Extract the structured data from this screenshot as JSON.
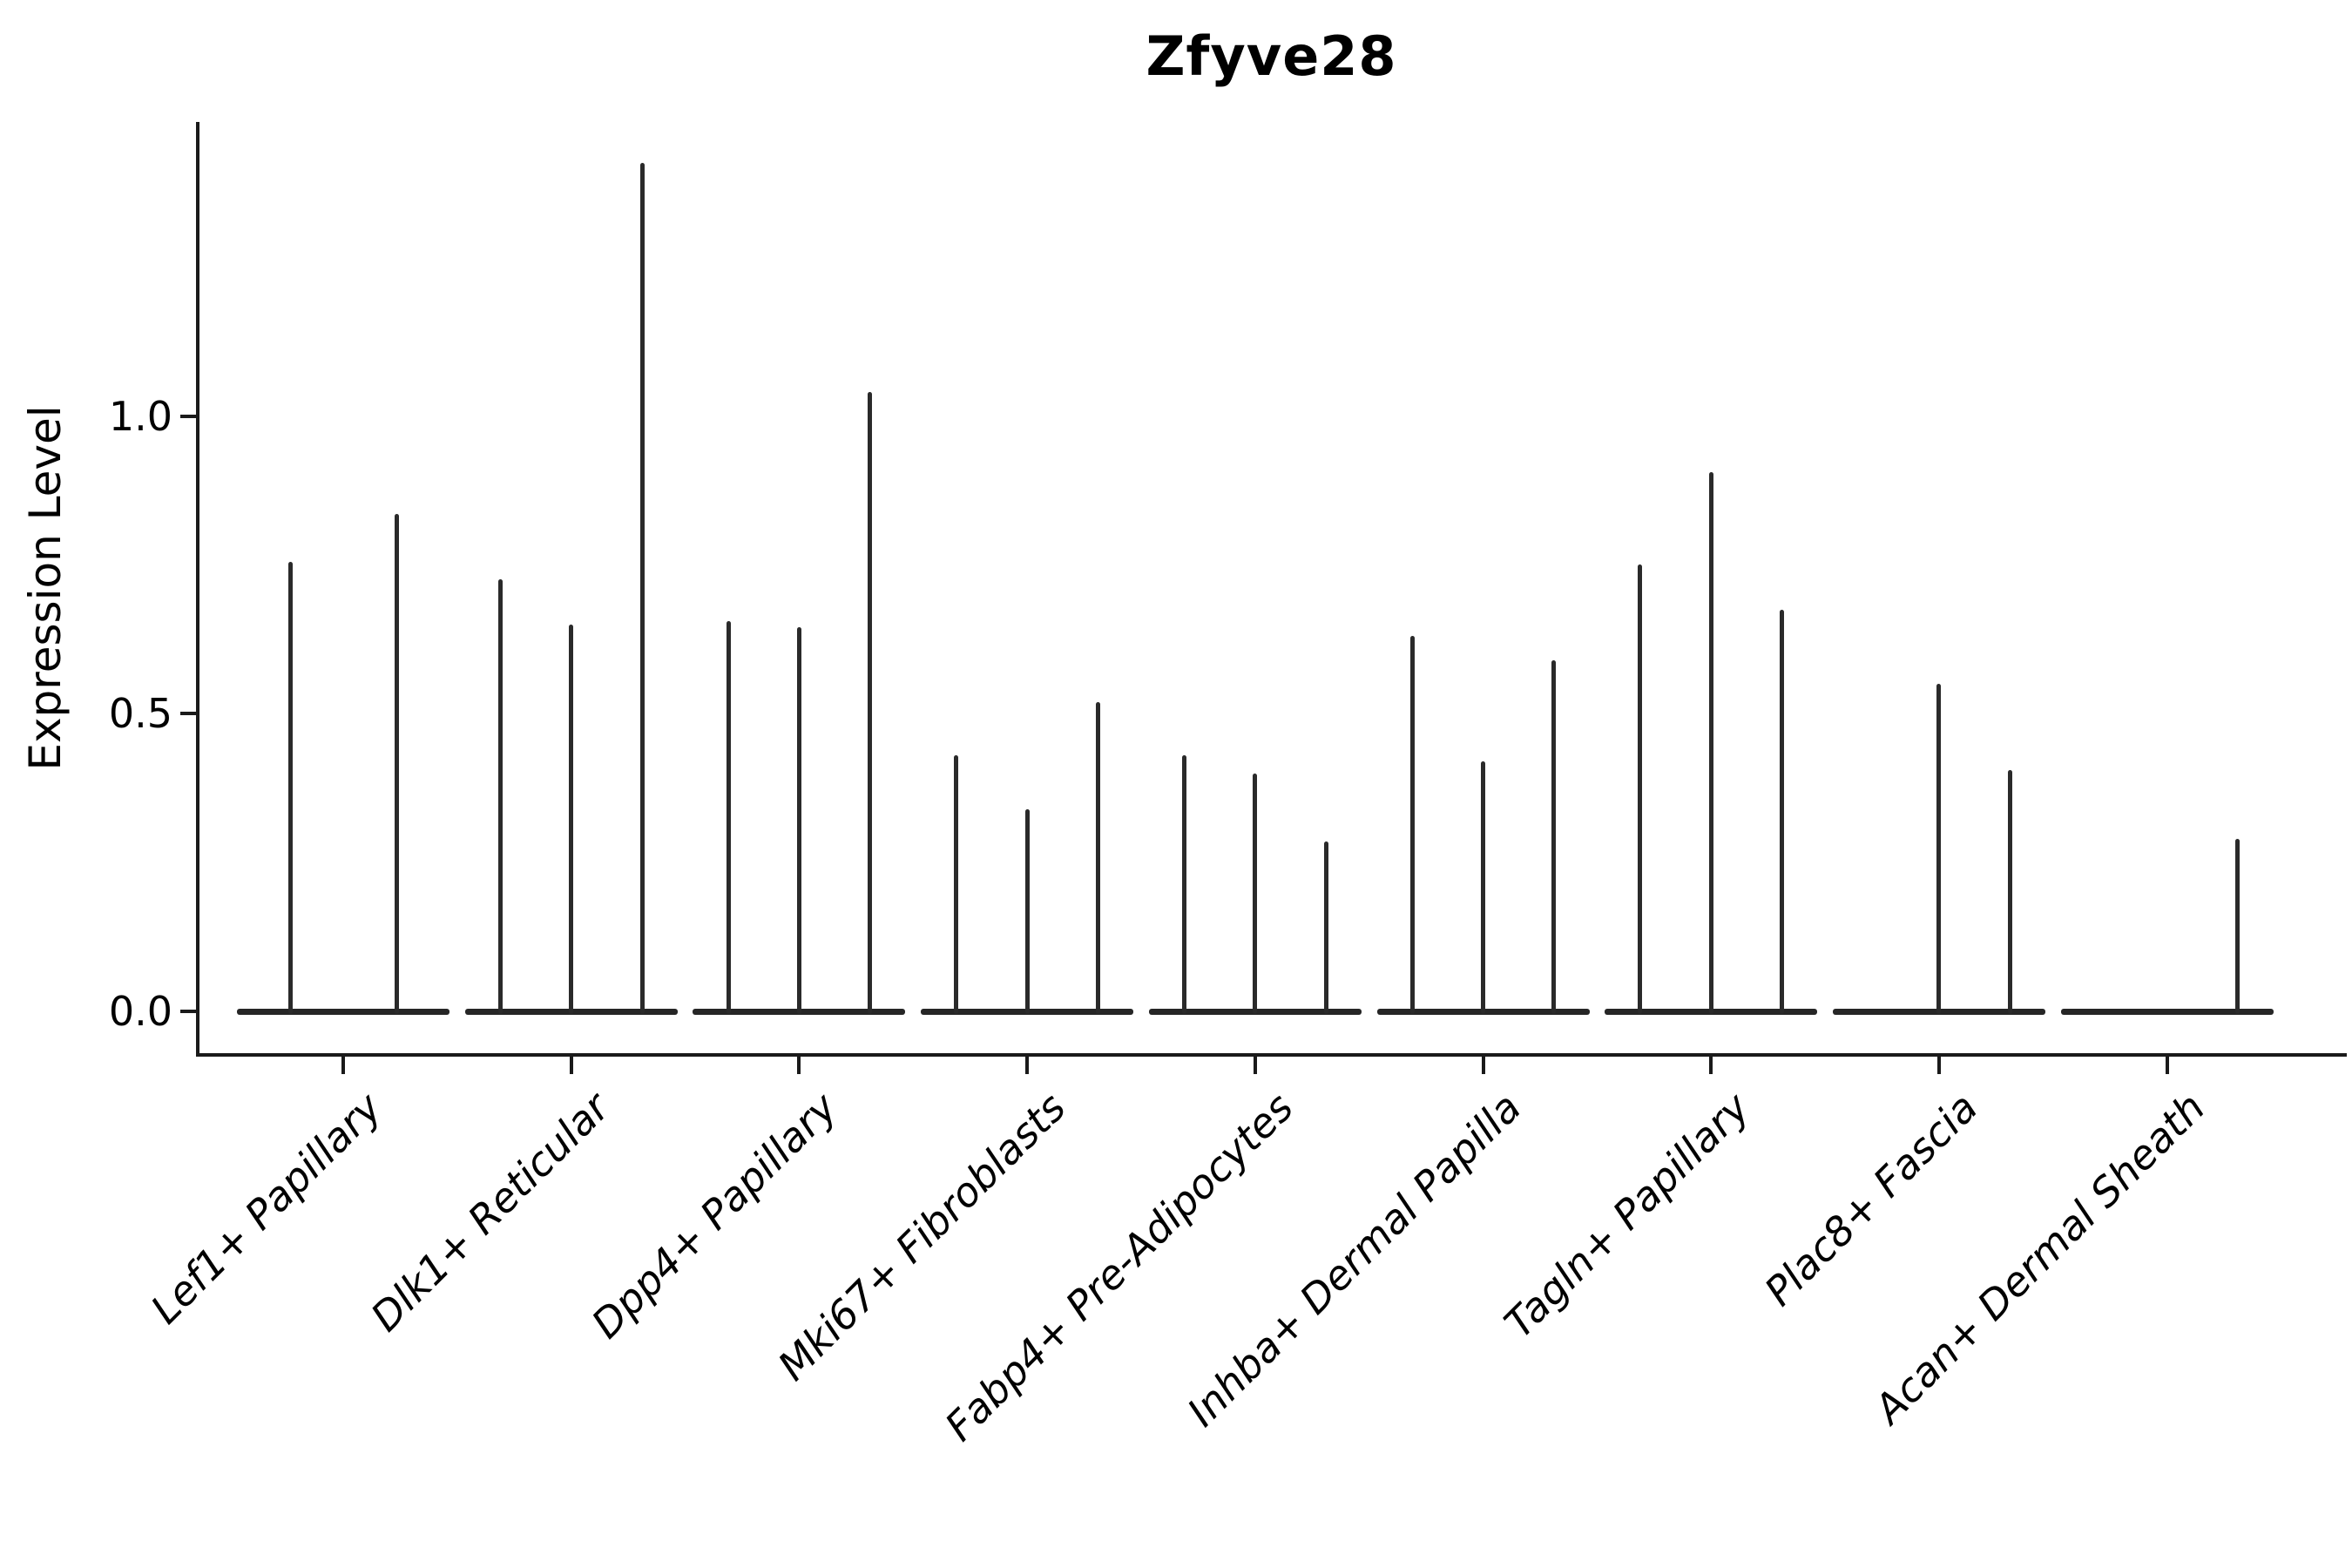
{
  "header": {
    "title": "Zfyve28"
  },
  "axes": {
    "ylabel": "Expression Level",
    "ytick_labels": [
      "0.0",
      "0.5",
      "1.0"
    ]
  },
  "chart_data": {
    "type": "violin",
    "title": "Zfyve28",
    "xlabel": "",
    "ylabel": "Expression Level",
    "yticks": [
      0.0,
      0.5,
      1.0
    ],
    "ylim": [
      -0.07,
      1.49
    ],
    "grid": false,
    "legend": "none",
    "style_note": "Each violin is collapsed to a horizontal baseline at expression 0 with a thin vertical spike reaching the maximum expression value; outline color near-black on white.",
    "categories": [
      "Lef1+ Papillary",
      "Dlk1+ Reticular",
      "Dpp4+ Papillary",
      "Mki67+ Fibroblasts",
      "Fabp4+ Pre-Adipocytes",
      "Inhba+ Dermal Papilla",
      "Tagln+ Papillary",
      "Plac8+ Fascia",
      "Acan+ Dermal Sheath"
    ],
    "groups": [
      {
        "label": "Lef1+ Papillary",
        "spike_values": [
          0.755,
          0.835
        ]
      },
      {
        "label": "Dlk1+ Reticular",
        "spike_values": [
          0.725,
          0.65,
          1.425
        ]
      },
      {
        "label": "Dpp4+ Papillary",
        "spike_values": [
          0.655,
          0.645,
          1.04
        ]
      },
      {
        "label": "Mki67+ Fibroblasts",
        "spike_values": [
          0.43,
          0.34,
          0.52
        ]
      },
      {
        "label": "Fabp4+ Pre-Adipocytes",
        "spike_values": [
          0.43,
          0.4,
          0.285
        ]
      },
      {
        "label": "Inhba+ Dermal Papilla",
        "spike_values": [
          0.63,
          0.42,
          0.59
        ]
      },
      {
        "label": "Tagln+ Papillary",
        "spike_values": [
          0.75,
          0.905,
          0.675
        ]
      },
      {
        "label": "Plac8+ Fascia",
        "spike_values": [
          0,
          0.55,
          0.405
        ]
      },
      {
        "label": "Acan+ Dermal Sheath",
        "spike_values": [
          0,
          0,
          0.29
        ]
      }
    ],
    "colors": {
      "stroke": "#262626",
      "spine": "#1a1a1a",
      "background": "#ffffff",
      "text": "#000000"
    }
  }
}
